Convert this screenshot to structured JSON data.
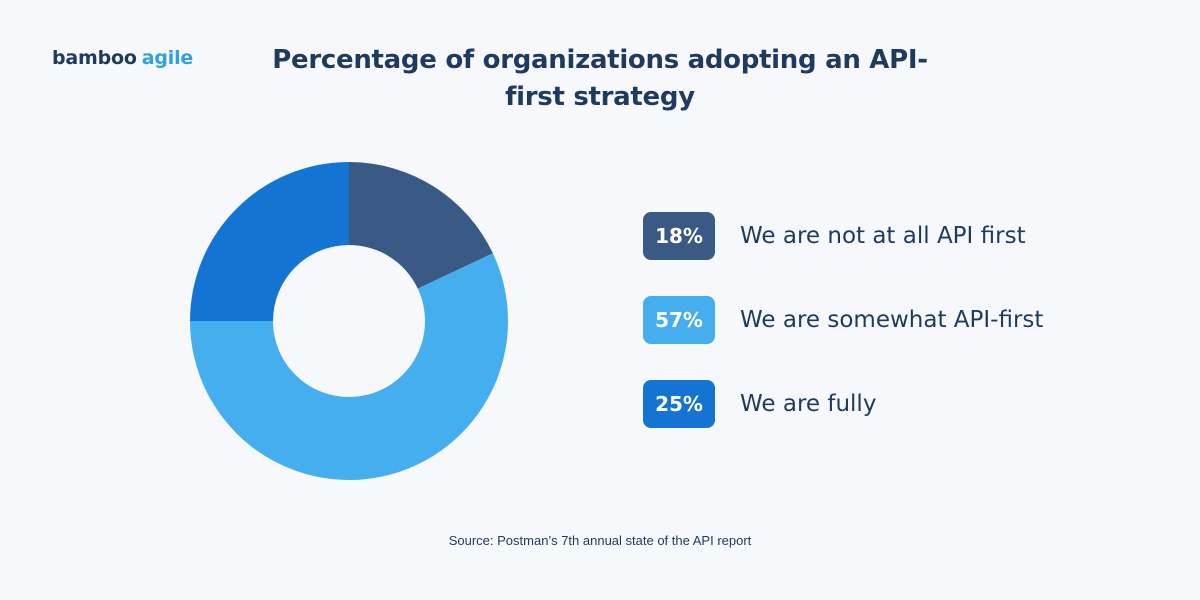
{
  "logo": {
    "word1": "bamboo",
    "word2": "agile"
  },
  "chart_data": {
    "type": "pie",
    "title": "Percentage of organizations adopting an API-first strategy",
    "donut": true,
    "start": "top (12 o'clock), clockwise",
    "slices": [
      {
        "label": "We are not at all API first",
        "value": 18,
        "display": "18%",
        "color": "#3a5a86"
      },
      {
        "label": "We are somewhat API-first",
        "value": 57,
        "display": "57%",
        "color": "#45aeef"
      },
      {
        "label": "We are fully",
        "value": 25,
        "display": "25%",
        "color": "#1474d3"
      }
    ],
    "legend_placement": "right"
  },
  "source": "Source: Postman’s 7th annual state of the API report"
}
